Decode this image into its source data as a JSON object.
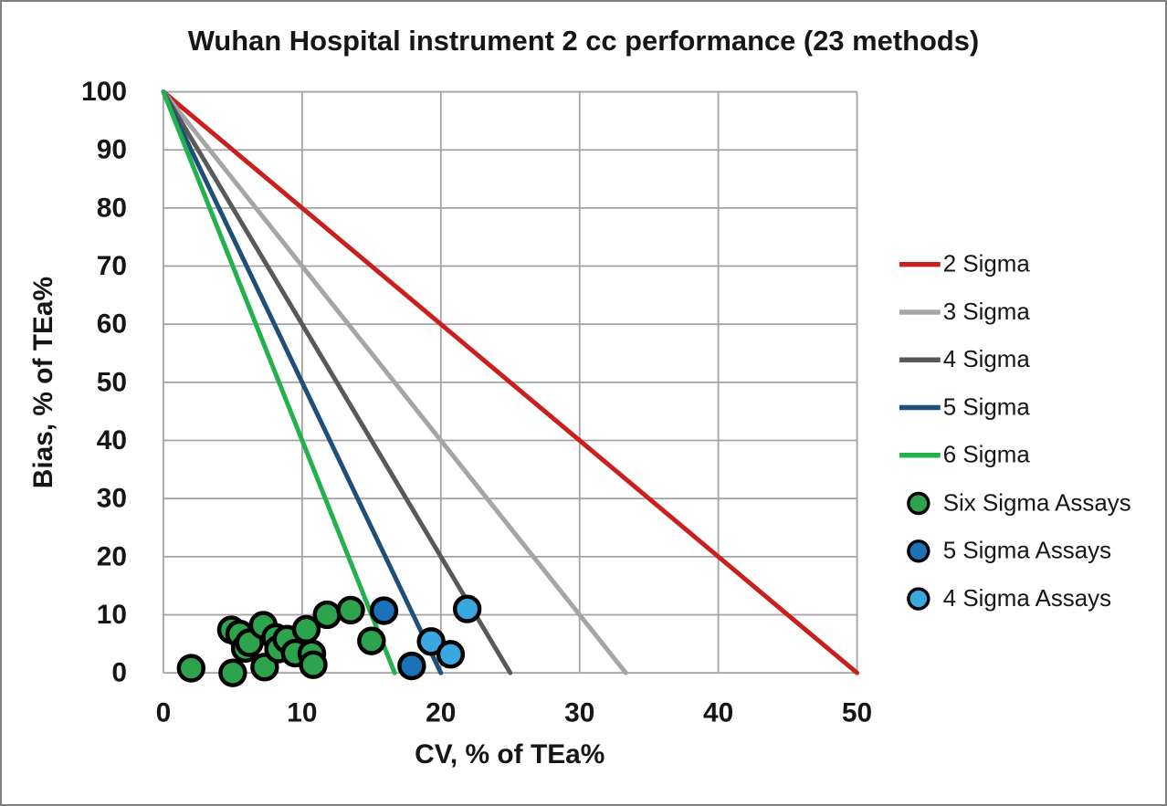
{
  "chart_data": {
    "type": "scatter",
    "title": "Wuhan Hospital instrument 2 cc performance (23 methods)",
    "xlabel": "CV, % of TEa%",
    "ylabel": "Bias, % of TEa%",
    "xlim": [
      0,
      50
    ],
    "ylim": [
      0,
      100
    ],
    "xticks": [
      0,
      10,
      20,
      30,
      40,
      50
    ],
    "yticks": [
      0,
      10,
      20,
      30,
      40,
      50,
      60,
      70,
      80,
      90,
      100
    ],
    "grid": true,
    "grid_color": "#a3a3a3",
    "legend_position": "right",
    "sigma_lines": [
      {
        "label": "2 Sigma",
        "sigma": 2,
        "color": "#c9201e",
        "from": [
          0,
          100
        ],
        "to": [
          50,
          0
        ]
      },
      {
        "label": "3 Sigma",
        "sigma": 3,
        "color": "#a5a5a5",
        "from": [
          0,
          100
        ],
        "to": [
          33.33,
          0
        ]
      },
      {
        "label": "4 Sigma",
        "sigma": 4,
        "color": "#595959",
        "from": [
          0,
          100
        ],
        "to": [
          25,
          0
        ]
      },
      {
        "label": "5 Sigma",
        "sigma": 5,
        "color": "#1f4e79",
        "from": [
          0,
          100
        ],
        "to": [
          20,
          0
        ]
      },
      {
        "label": "6 Sigma",
        "sigma": 6,
        "color": "#22b14c",
        "from": [
          0,
          100
        ],
        "to": [
          16.67,
          0
        ]
      }
    ],
    "series": [
      {
        "name": "Six Sigma Assays",
        "color": "#2ea34d",
        "points": [
          [
            2,
            0.8
          ],
          [
            5,
            0
          ],
          [
            4.9,
            7.4
          ],
          [
            5.5,
            6.7
          ],
          [
            5.9,
            4.2
          ],
          [
            6.2,
            5.2
          ],
          [
            7.2,
            8.2
          ],
          [
            7.3,
            1.0
          ],
          [
            8.1,
            6.1
          ],
          [
            8.3,
            4.1
          ],
          [
            8.9,
            5.8
          ],
          [
            9.5,
            3.4
          ],
          [
            10.3,
            7.5
          ],
          [
            10.7,
            3.3
          ],
          [
            10.8,
            1.4
          ],
          [
            11.8,
            10.0
          ],
          [
            13.5,
            10.8
          ],
          [
            15.0,
            5.5
          ]
        ]
      },
      {
        "name": "5 Sigma Assays",
        "color": "#1b72b8",
        "points": [
          [
            15.9,
            10.7
          ],
          [
            17.9,
            1.2
          ]
        ]
      },
      {
        "name": "4 Sigma Assays",
        "color": "#3aa8e0",
        "points": [
          [
            19.3,
            5.4
          ],
          [
            20.7,
            3.2
          ],
          [
            21.9,
            11.0
          ]
        ]
      }
    ],
    "marker": {
      "radius": 13.5,
      "stroke": "#000000",
      "stroke_width": 4.5
    }
  }
}
